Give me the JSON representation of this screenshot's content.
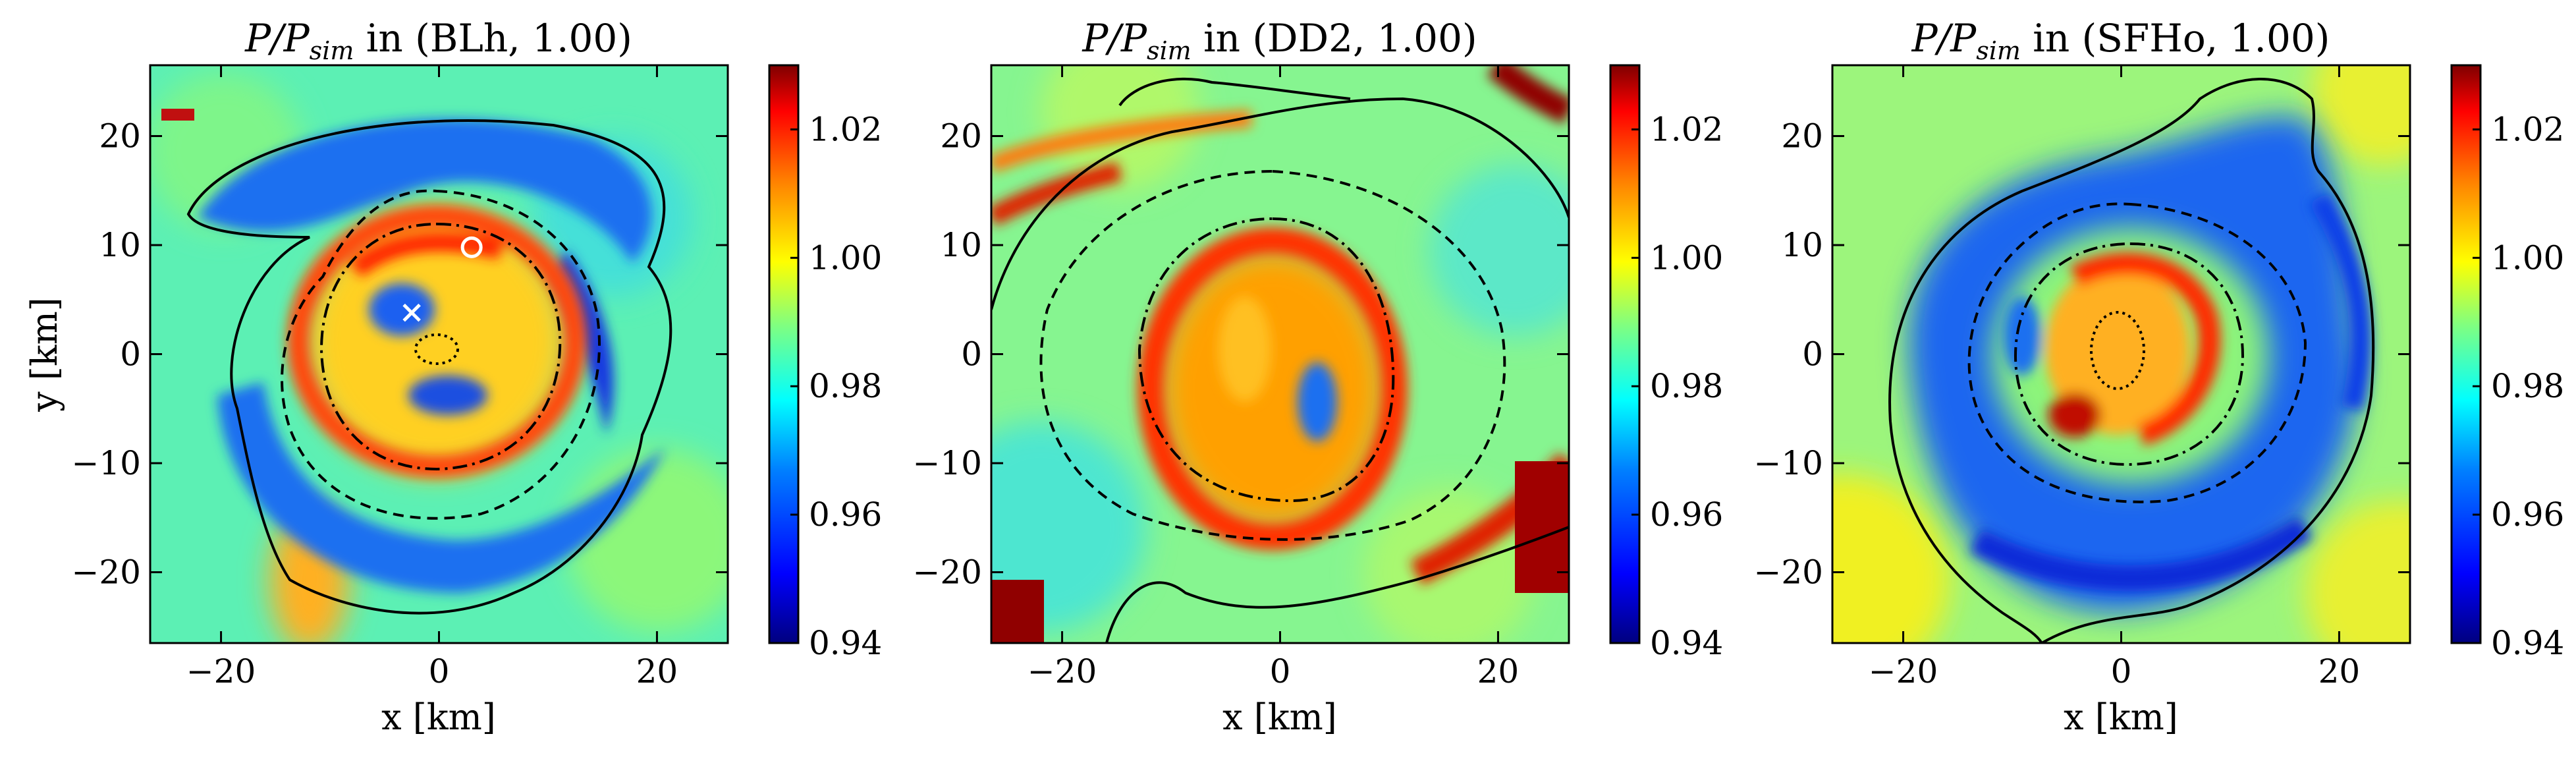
{
  "figure": {
    "colors": {
      "background": "#ffffff",
      "colormap": [
        "#00007f",
        "#0000ff",
        "#0080ff",
        "#00ffff",
        "#80ff80",
        "#ffff00",
        "#ff8000",
        "#ff0000",
        "#7f0000"
      ]
    }
  },
  "chart_data": [
    {
      "type": "heatmap",
      "title_prefix": "P/P",
      "title_sub": "sim",
      "title_suffix": " in (BLh, 1.00)",
      "xlabel": "x [km]",
      "ylabel": "y [km]",
      "xlim": [
        -26.5,
        26.5
      ],
      "ylim": [
        -26.5,
        26.5
      ],
      "xticks": [
        -20,
        0,
        20
      ],
      "yticks": [
        -20,
        -10,
        0,
        10,
        20
      ],
      "xtick_labels": [
        "−20",
        "0",
        "20"
      ],
      "ytick_labels": [
        "−20",
        "−10",
        "0",
        "10",
        "20"
      ],
      "colorbar": {
        "vmin": 0.94,
        "vmax": 1.03,
        "ticks": [
          0.94,
          0.96,
          0.98,
          1.0,
          1.02
        ],
        "tick_labels": [
          "0.94",
          "0.96",
          "0.98",
          "1.00",
          "1.02"
        ]
      },
      "markers": [
        {
          "type": "cross",
          "x": -2.5,
          "y": 3.8,
          "color": "#ffffff"
        },
        {
          "type": "circle",
          "x": 3.0,
          "y": 9.8,
          "color": "#ffffff"
        }
      ]
    },
    {
      "type": "heatmap",
      "title_prefix": "P/P",
      "title_sub": "sim",
      "title_suffix": " in (DD2, 1.00)",
      "xlabel": "x [km]",
      "ylabel": "",
      "xlim": [
        -26.5,
        26.5
      ],
      "ylim": [
        -26.5,
        26.5
      ],
      "xticks": [
        -20,
        0,
        20
      ],
      "yticks": [
        -20,
        -10,
        0,
        10,
        20
      ],
      "xtick_labels": [
        "−20",
        "0",
        "20"
      ],
      "ytick_labels": [
        "−20",
        "−10",
        "0",
        "10",
        "20"
      ],
      "colorbar": {
        "vmin": 0.94,
        "vmax": 1.03,
        "ticks": [
          0.94,
          0.96,
          0.98,
          1.0,
          1.02
        ],
        "tick_labels": [
          "0.94",
          "0.96",
          "0.98",
          "1.00",
          "1.02"
        ]
      },
      "markers": []
    },
    {
      "type": "heatmap",
      "title_prefix": "P/P",
      "title_sub": "sim",
      "title_suffix": " in (SFHo, 1.00)",
      "xlabel": "x [km]",
      "ylabel": "",
      "xlim": [
        -26.5,
        26.5
      ],
      "ylim": [
        -26.5,
        26.5
      ],
      "xticks": [
        -20,
        0,
        20
      ],
      "yticks": [
        -20,
        -10,
        0,
        10,
        20
      ],
      "xtick_labels": [
        "−20",
        "0",
        "20"
      ],
      "ytick_labels": [
        "−20",
        "−10",
        "0",
        "10",
        "20"
      ],
      "colorbar": {
        "vmin": 0.94,
        "vmax": 1.03,
        "ticks": [
          0.94,
          0.96,
          0.98,
          1.0,
          1.02
        ],
        "tick_labels": [
          "0.94",
          "0.96",
          "0.98",
          "1.00",
          "1.02"
        ]
      },
      "markers": []
    }
  ]
}
